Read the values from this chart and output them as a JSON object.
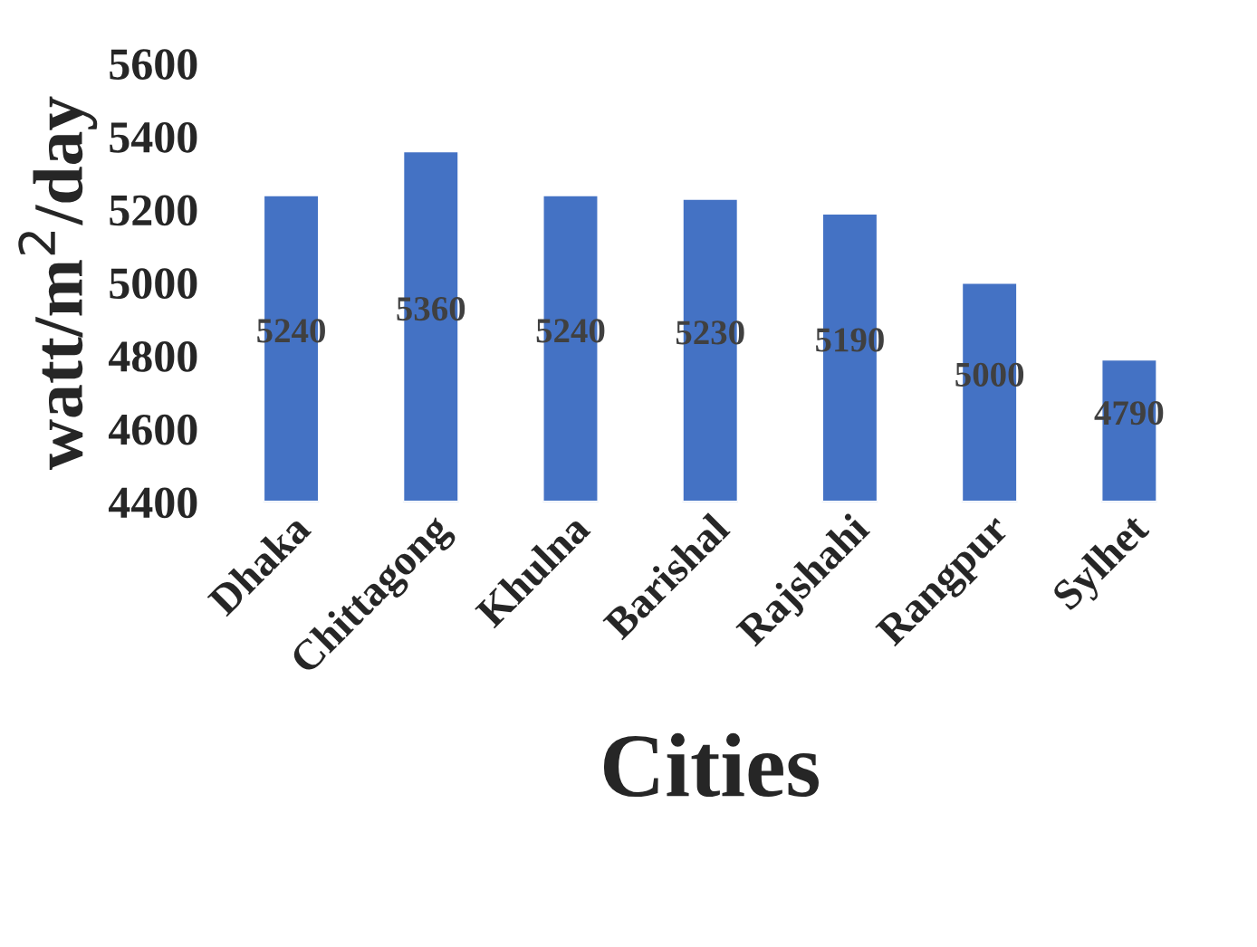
{
  "chart_data": {
    "type": "bar",
    "categories": [
      "Dhaka",
      "Chittagong",
      "Khulna",
      "Barishal",
      "Rajshahi",
      "Rangpur",
      "Sylhet"
    ],
    "values": [
      5240,
      5360,
      5240,
      5230,
      5190,
      5000,
      4790
    ],
    "color": "#4472c4",
    "xlabel": "Cities",
    "ylabel": "watt/m$^{2}$/day",
    "ylim": [
      4400,
      5600
    ],
    "yticks": [
      4400,
      4600,
      4800,
      5000,
      5200,
      5400,
      5600
    ],
    "data_labels": true,
    "grid": false,
    "legend": false
  }
}
